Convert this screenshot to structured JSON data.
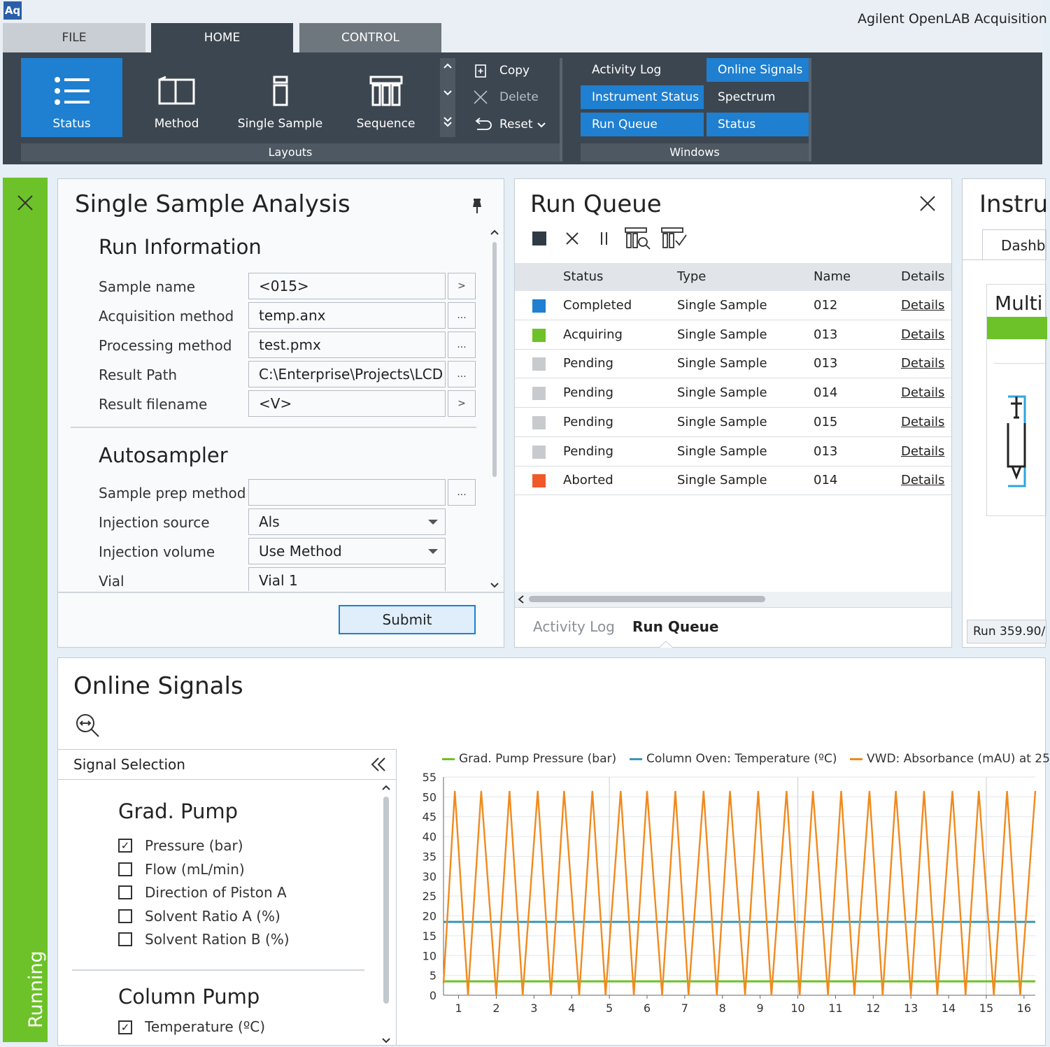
{
  "app": {
    "logo": "Aq",
    "title": "Agilent OpenLAB Acquisition"
  },
  "tabs": [
    {
      "label": "FILE"
    },
    {
      "label": "HOME"
    },
    {
      "label": "CONTROL"
    }
  ],
  "ribbon": {
    "layouts": [
      {
        "label": "Status"
      },
      {
        "label": "Method"
      },
      {
        "label": "Single Sample"
      },
      {
        "label": "Sequence"
      }
    ],
    "layouts_group": "Layouts",
    "edit": [
      {
        "label": "Copy"
      },
      {
        "label": "Delete"
      },
      {
        "label": "Reset"
      }
    ],
    "windows": [
      {
        "label": "Activity Log"
      },
      {
        "label": "Online Signals"
      },
      {
        "label": "Instrument Status"
      },
      {
        "label": "Spectrum"
      },
      {
        "label": "Run Queue"
      },
      {
        "label": "Status"
      }
    ],
    "windows_group": "Windows"
  },
  "status_bar": {
    "label": "Running"
  },
  "single_sample": {
    "title": "Single Sample Analysis",
    "run_info_title": "Run Information",
    "fields": [
      {
        "label": "Sample name",
        "value": "<015>",
        "btn": ">"
      },
      {
        "label": "Acquisition method",
        "value": "temp.anx",
        "btn": "..."
      },
      {
        "label": "Processing method",
        "value": "test.pmx",
        "btn": "..."
      },
      {
        "label": "Result Path",
        "value": "C:\\Enterprise\\Projects\\LCD",
        "btn": "..."
      },
      {
        "label": "Result filename",
        "value": "<V>",
        "btn": ">"
      }
    ],
    "autosampler_title": "Autosampler",
    "auto_fields": [
      {
        "label": "Sample prep method",
        "value": "",
        "btn": "..."
      },
      {
        "label": "Injection source",
        "value": "Als"
      },
      {
        "label": "Injection volume",
        "value": "Use Method"
      },
      {
        "label": "Vial",
        "value": "Vial 1"
      }
    ],
    "submit": "Submit"
  },
  "run_queue": {
    "title": "Run Queue",
    "columns": [
      "Status",
      "Type",
      "Name",
      "Details"
    ],
    "rows": [
      {
        "status": "Completed",
        "type": "Single Sample",
        "name": "012",
        "details": "Details",
        "color": "#1f7fd0"
      },
      {
        "status": "Acquiring",
        "type": "Single Sample",
        "name": "013",
        "details": "Details",
        "color": "#6cc228"
      },
      {
        "status": "Pending",
        "type": "Single Sample",
        "name": "013",
        "details": "Details",
        "color": "#c8cbce"
      },
      {
        "status": "Pending",
        "type": "Single Sample",
        "name": "014",
        "details": "Details",
        "color": "#c8cbce"
      },
      {
        "status": "Pending",
        "type": "Single Sample",
        "name": "015",
        "details": "Details",
        "color": "#c8cbce"
      },
      {
        "status": "Pending",
        "type": "Single Sample",
        "name": "013",
        "details": "Details",
        "color": "#c8cbce"
      },
      {
        "status": "Aborted",
        "type": "Single Sample",
        "name": "014",
        "details": "Details",
        "color": "#f05a28"
      }
    ],
    "bottom_tabs": [
      "Activity Log",
      "Run Queue"
    ]
  },
  "instrument": {
    "title": "Instru",
    "tab": "Dashb",
    "card": "Multi",
    "run": "Run 359.90/"
  },
  "online_signals": {
    "title": "Online Signals",
    "signal_selection": "Signal Selection",
    "groups": [
      {
        "title": "Grad. Pump",
        "items": [
          {
            "label": "Pressure (bar)",
            "checked": true
          },
          {
            "label": "Flow (mL/min)",
            "checked": false
          },
          {
            "label": "Direction of Piston A",
            "checked": false
          },
          {
            "label": "Solvent Ratio A (%)",
            "checked": false
          },
          {
            "label": "Solvent Ration B (%)",
            "checked": false
          }
        ]
      },
      {
        "title": "Column Pump",
        "items": [
          {
            "label": "Temperature (ºC)",
            "checked": true
          }
        ]
      }
    ]
  },
  "chart_data": {
    "type": "line",
    "title": "",
    "xlabel": "",
    "ylabel": "",
    "xlim": [
      0.6,
      16.3
    ],
    "ylim": [
      0,
      55
    ],
    "x_ticks": [
      1,
      2,
      3,
      4,
      5,
      6,
      7,
      8,
      9,
      10,
      11,
      12,
      13,
      14,
      15,
      16
    ],
    "y_ticks": [
      0,
      5,
      10,
      15,
      20,
      25,
      30,
      35,
      40,
      45,
      50,
      55
    ],
    "legend_position": "top",
    "series": [
      {
        "name": "Grad. Pump Pressure (bar)",
        "color": "#6cc228",
        "x": [
          0.6,
          16.3
        ],
        "y": [
          3.5,
          3.5
        ]
      },
      {
        "name": "Column Oven: Temperature (ºC)",
        "color": "#3a96b8",
        "x": [
          0.6,
          16.3
        ],
        "y": [
          18.5,
          18.5
        ]
      },
      {
        "name": "VWD: Absorbance (mAU) at 25",
        "color": "#f08a1e",
        "x": [
          0.6,
          0.9,
          1.25,
          1.6,
          2.0,
          2.35,
          2.7,
          3.1,
          3.45,
          3.8,
          4.2,
          4.55,
          4.9,
          5.3,
          5.65,
          6.0,
          6.4,
          6.75,
          7.1,
          7.5,
          7.85,
          8.2,
          8.6,
          8.95,
          9.3,
          9.7,
          10.05,
          10.4,
          10.8,
          11.15,
          11.5,
          11.9,
          12.25,
          12.6,
          13.0,
          13.35,
          13.7,
          14.1,
          14.45,
          14.8,
          15.2,
          15.55,
          15.9,
          16.3
        ],
        "y": [
          3,
          51.5,
          0,
          51.5,
          0,
          51.5,
          0,
          51.5,
          0,
          51.5,
          0,
          51.5,
          0,
          51.5,
          0,
          51.5,
          0,
          51.5,
          0,
          51.5,
          0,
          51.5,
          0,
          51.5,
          0,
          51.5,
          0,
          51.5,
          0,
          51.5,
          0,
          51.5,
          0,
          51.5,
          0,
          51.5,
          0,
          51.5,
          0,
          51.5,
          0,
          51.5,
          0,
          51.5
        ]
      }
    ]
  }
}
